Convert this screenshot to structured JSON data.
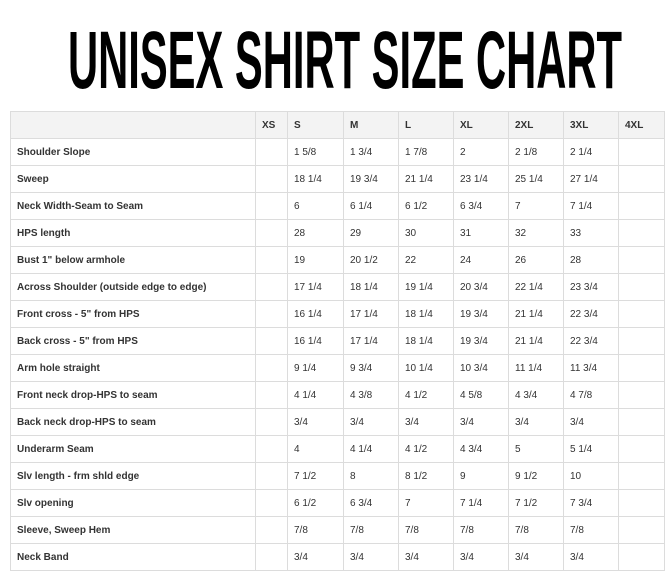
{
  "title": "UNISEX SHIRT SIZE CHART",
  "table": {
    "headers": [
      "",
      "XS",
      "S",
      "M",
      "L",
      "XL",
      "2XL",
      "3XL",
      "4XL"
    ],
    "rows": [
      {
        "label": "Shoulder Slope",
        "values": [
          "",
          "1 5/8",
          "1 3/4",
          "1 7/8",
          "2",
          "2 1/8",
          "2 1/4",
          ""
        ]
      },
      {
        "label": "Sweep",
        "values": [
          "",
          "18 1/4",
          "19 3/4",
          "21 1/4",
          "23 1/4",
          "25 1/4",
          "27 1/4",
          ""
        ]
      },
      {
        "label": "Neck Width-Seam to Seam",
        "values": [
          "",
          "6",
          "6 1/4",
          "6 1/2",
          "6 3/4",
          "7",
          "7 1/4",
          ""
        ]
      },
      {
        "label": "HPS length",
        "values": [
          "",
          "28",
          "29",
          "30",
          "31",
          "32",
          "33",
          ""
        ]
      },
      {
        "label": "Bust 1\" below armhole",
        "values": [
          "",
          "19",
          "20 1/2",
          "22",
          "24",
          "26",
          "28",
          ""
        ]
      },
      {
        "label": "Across Shoulder (outside edge to edge)",
        "values": [
          "",
          "17 1/4",
          "18 1/4",
          "19 1/4",
          "20 3/4",
          "22 1/4",
          "23 3/4",
          ""
        ]
      },
      {
        "label": "Front cross - 5\" from HPS",
        "values": [
          "",
          "16 1/4",
          "17 1/4",
          "18 1/4",
          "19 3/4",
          "21 1/4",
          "22 3/4",
          ""
        ]
      },
      {
        "label": "Back cross - 5\" from HPS",
        "values": [
          "",
          "16 1/4",
          "17 1/4",
          "18 1/4",
          "19 3/4",
          "21 1/4",
          "22 3/4",
          ""
        ]
      },
      {
        "label": "Arm hole straight",
        "values": [
          "",
          "9 1/4",
          "9 3/4",
          "10 1/4",
          "10 3/4",
          "11 1/4",
          "11 3/4",
          ""
        ]
      },
      {
        "label": "Front neck drop-HPS to seam",
        "values": [
          "",
          "4 1/4",
          "4 3/8",
          "4 1/2",
          "4 5/8",
          "4 3/4",
          "4 7/8",
          ""
        ]
      },
      {
        "label": "Back neck drop-HPS to seam",
        "values": [
          "",
          "3/4",
          "3/4",
          "3/4",
          "3/4",
          "3/4",
          "3/4",
          ""
        ]
      },
      {
        "label": "Underarm Seam",
        "values": [
          "",
          "4",
          "4 1/4",
          "4 1/2",
          "4 3/4",
          "5",
          "5 1/4",
          ""
        ]
      },
      {
        "label": "Slv length - frm shld edge",
        "values": [
          "",
          "7 1/2",
          "8",
          "8 1/2",
          "9",
          "9 1/2",
          "10",
          ""
        ]
      },
      {
        "label": "Slv opening",
        "values": [
          "",
          "6 1/2",
          "6 3/4",
          "7",
          "7 1/4",
          "7 1/2",
          "7 3/4",
          ""
        ]
      },
      {
        "label": "Sleeve, Sweep Hem",
        "values": [
          "",
          "7/8",
          "7/8",
          "7/8",
          "7/8",
          "7/8",
          "7/8",
          ""
        ]
      },
      {
        "label": "Neck Band",
        "values": [
          "",
          "3/4",
          "3/4",
          "3/4",
          "3/4",
          "3/4",
          "3/4",
          ""
        ]
      }
    ]
  }
}
